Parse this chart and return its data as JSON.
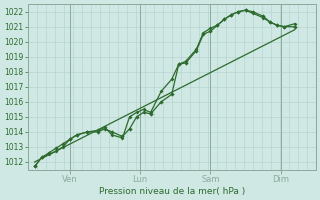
{
  "xlabel": "Pression niveau de la mer( hPa )",
  "bg_color": "#cfe8e4",
  "line_color": "#2d6b2d",
  "grid_color": "#b8d4d0",
  "tick_color": "#2d6b2d",
  "label_color": "#2d6b2d",
  "spine_color": "#8aaa9a",
  "ylim": [
    1011.5,
    1022.5
  ],
  "yticks": [
    1012,
    1013,
    1014,
    1015,
    1016,
    1017,
    1018,
    1019,
    1020,
    1021,
    1022
  ],
  "day_labels": [
    "Ven",
    "Lun",
    "Sam",
    "Dim"
  ],
  "day_positions": [
    1,
    3,
    5,
    7
  ],
  "vline_x": [
    1,
    3,
    5,
    7
  ],
  "xlim": [
    -0.2,
    8.0
  ],
  "series1_x": [
    0.0,
    0.2,
    0.4,
    0.6,
    0.8,
    1.0,
    1.2,
    1.5,
    1.8,
    2.0,
    2.2,
    2.5,
    2.7,
    2.9,
    3.1,
    3.3,
    3.6,
    3.9,
    4.1,
    4.3,
    4.6,
    4.8,
    5.0,
    5.2,
    5.4,
    5.6,
    5.8,
    6.0,
    6.2,
    6.5,
    6.7,
    6.9,
    7.1,
    7.4
  ],
  "series1_y": [
    1011.7,
    1012.3,
    1012.6,
    1012.9,
    1013.2,
    1013.5,
    1013.8,
    1014.0,
    1014.0,
    1014.2,
    1014.0,
    1013.7,
    1014.2,
    1015.0,
    1015.3,
    1015.2,
    1016.0,
    1016.5,
    1018.5,
    1018.6,
    1019.4,
    1020.5,
    1020.7,
    1021.1,
    1021.5,
    1021.8,
    1022.0,
    1022.1,
    1022.0,
    1021.7,
    1021.3,
    1021.1,
    1021.0,
    1021.0
  ],
  "series2_x": [
    0.0,
    0.2,
    0.4,
    0.6,
    0.8,
    1.0,
    1.2,
    1.5,
    1.8,
    2.0,
    2.2,
    2.5,
    2.7,
    2.9,
    3.1,
    3.3,
    3.6,
    3.9,
    4.1,
    4.3,
    4.6,
    4.8,
    5.0,
    5.2,
    5.4,
    5.6,
    5.8,
    6.0,
    6.2,
    6.5,
    6.7,
    6.9,
    7.1,
    7.4
  ],
  "series2_y": [
    1011.7,
    1012.3,
    1012.5,
    1012.7,
    1013.0,
    1013.5,
    1013.8,
    1014.0,
    1014.1,
    1014.3,
    1013.8,
    1013.6,
    1015.0,
    1015.3,
    1015.5,
    1015.3,
    1016.7,
    1017.5,
    1018.5,
    1018.7,
    1019.5,
    1020.6,
    1020.9,
    1021.1,
    1021.5,
    1021.8,
    1022.0,
    1022.1,
    1021.9,
    1021.6,
    1021.3,
    1021.1,
    1021.0,
    1021.2
  ],
  "trend_x": [
    0.0,
    7.4
  ],
  "trend_y": [
    1012.0,
    1020.8
  ]
}
